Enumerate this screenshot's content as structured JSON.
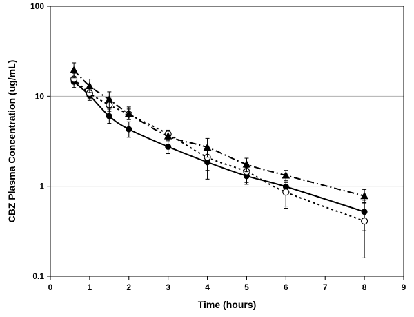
{
  "chart_data": {
    "type": "line",
    "title": "",
    "xlabel": "Time (hours)",
    "ylabel": "CBZ Plasma Concentration (ug/mL)",
    "xlim": [
      0,
      9
    ],
    "ylim": [
      0.1,
      100
    ],
    "y_scale": "log",
    "x_ticks": [
      "0",
      "1",
      "2",
      "3",
      "4",
      "5",
      "6",
      "7",
      "8",
      "9"
    ],
    "y_ticks": [
      "0.1",
      "1",
      "10",
      "100"
    ],
    "grid": "horizontal at decades",
    "legend": "none",
    "series": [
      {
        "marker": "filled-circle",
        "line_style": "solid",
        "color": "#000000",
        "points": [
          {
            "x": 0.6,
            "y": 14.5,
            "lo": 12.5,
            "hi": 16.5
          },
          {
            "x": 1.0,
            "y": 10.2,
            "lo": 9.0,
            "hi": 11.5
          },
          {
            "x": 1.5,
            "y": 6.0,
            "lo": 5.0,
            "hi": 7.2
          },
          {
            "x": 2.0,
            "y": 4.3,
            "lo": 3.5,
            "hi": 5.2
          },
          {
            "x": 3.0,
            "y": 2.75,
            "lo": 2.3,
            "hi": 3.3
          },
          {
            "x": 4.0,
            "y": 1.85,
            "lo": 1.2,
            "hi": 2.6
          },
          {
            "x": 5.0,
            "y": 1.3,
            "lo": 1.05,
            "hi": 1.6
          },
          {
            "x": 6.0,
            "y": 0.99,
            "lo": 0.57,
            "hi": 1.4
          },
          {
            "x": 8.0,
            "y": 0.52,
            "lo": 0.32,
            "hi": 0.7
          }
        ]
      },
      {
        "marker": "open-circle",
        "line_style": "dotted",
        "color": "#000000",
        "points": [
          {
            "x": 0.6,
            "y": 15.5,
            "lo": 13.0,
            "hi": 18.0
          },
          {
            "x": 1.0,
            "y": 10.8,
            "lo": 9.5,
            "hi": 12.0
          },
          {
            "x": 1.5,
            "y": 8.0,
            "lo": 6.8,
            "hi": 9.5
          },
          {
            "x": 2.0,
            "y": 6.3,
            "lo": 5.5,
            "hi": 7.2
          },
          {
            "x": 3.0,
            "y": 3.8,
            "lo": 3.4,
            "hi": 4.2
          },
          {
            "x": 4.0,
            "y": 2.1,
            "lo": 1.5,
            "hi": 2.7
          },
          {
            "x": 5.0,
            "y": 1.45,
            "lo": 1.1,
            "hi": 1.7
          },
          {
            "x": 6.0,
            "y": 0.86,
            "lo": 0.6,
            "hi": 1.1
          },
          {
            "x": 8.0,
            "y": 0.41,
            "lo": 0.16,
            "hi": 0.65
          }
        ]
      },
      {
        "marker": "filled-triangle",
        "line_style": "dash-dot",
        "color": "#000000",
        "points": [
          {
            "x": 0.6,
            "y": 19.5,
            "lo": 16.0,
            "hi": 23.5
          },
          {
            "x": 1.0,
            "y": 13.0,
            "lo": 11.0,
            "hi": 15.5
          },
          {
            "x": 1.5,
            "y": 9.2,
            "lo": 7.5,
            "hi": 11.2
          },
          {
            "x": 2.0,
            "y": 6.4,
            "lo": 5.5,
            "hi": 7.6
          },
          {
            "x": 3.0,
            "y": 3.6,
            "lo": 3.2,
            "hi": 4.1
          },
          {
            "x": 4.0,
            "y": 2.7,
            "lo": 2.1,
            "hi": 3.4
          },
          {
            "x": 5.0,
            "y": 1.75,
            "lo": 1.45,
            "hi": 2.05
          },
          {
            "x": 6.0,
            "y": 1.32,
            "lo": 1.15,
            "hi": 1.5
          },
          {
            "x": 8.0,
            "y": 0.78,
            "lo": 0.66,
            "hi": 0.92
          }
        ]
      }
    ]
  }
}
